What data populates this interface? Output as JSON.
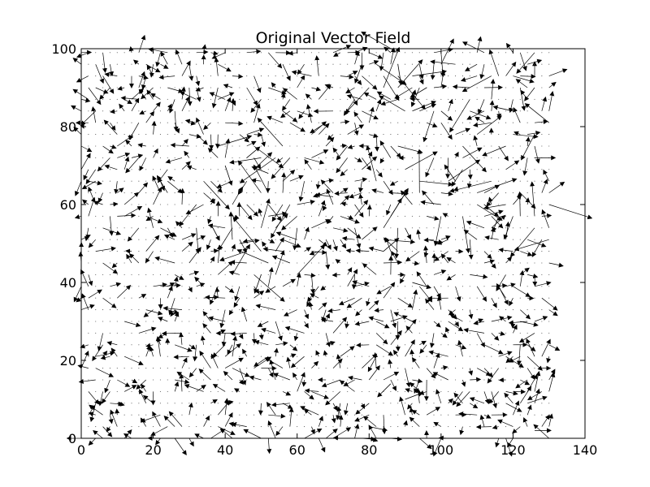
{
  "chart_data": {
    "type": "quiver",
    "title": "Original Vector Field",
    "xlabel": "",
    "ylabel": "",
    "xlim": [
      0,
      140
    ],
    "ylim": [
      0,
      100
    ],
    "xticks": [
      0,
      20,
      40,
      60,
      80,
      100,
      120,
      140
    ],
    "yticks": [
      0,
      20,
      40,
      60,
      80,
      100
    ],
    "grid": false,
    "legend": "none",
    "background_color": "#ffffff",
    "arrow_color": "#000000",
    "sample_grid": {
      "x_start": 0,
      "x_end": 130,
      "x_step": 2,
      "y_start": 0,
      "y_end": 100,
      "y_step": 3
    },
    "field_description": "Dense quiver plot of small arrows with mostly random directions; larger arrows cluster around x 30-60, y 40-75 and x 80-130, y 50-100.",
    "vectors_sample": [
      {
        "x": 40,
        "y": 70,
        "u": 0.6,
        "v": -1.8
      },
      {
        "x": 46,
        "y": 72,
        "u": 1.2,
        "v": 1.0
      },
      {
        "x": 52,
        "y": 68,
        "u": -1.5,
        "v": 0.6
      },
      {
        "x": 36,
        "y": 55,
        "u": 0.8,
        "v": -1.5
      },
      {
        "x": 44,
        "y": 50,
        "u": 1.8,
        "v": 0.3
      },
      {
        "x": 50,
        "y": 42,
        "u": -0.6,
        "v": -1.7
      },
      {
        "x": 70,
        "y": 62,
        "u": -1.6,
        "v": 0.2
      },
      {
        "x": 84,
        "y": 48,
        "u": 1.4,
        "v": 1.2
      },
      {
        "x": 92,
        "y": 40,
        "u": 1.7,
        "v": -0.5
      },
      {
        "x": 104,
        "y": 66,
        "u": -1.0,
        "v": 1.5
      },
      {
        "x": 112,
        "y": 60,
        "u": 1.3,
        "v": -1.1
      },
      {
        "x": 120,
        "y": 84,
        "u": -1.8,
        "v": 0.4
      },
      {
        "x": 126,
        "y": 72,
        "u": 1.9,
        "v": 0.0
      },
      {
        "x": 88,
        "y": 96,
        "u": 0.3,
        "v": -1.9
      },
      {
        "x": 96,
        "y": 90,
        "u": -1.5,
        "v": -0.9
      },
      {
        "x": 86,
        "y": 14,
        "u": -1.2,
        "v": -1.2
      },
      {
        "x": 90,
        "y": 10,
        "u": 1.6,
        "v": 0.6
      },
      {
        "x": 126,
        "y": 2,
        "u": 1.5,
        "v": 0.0
      }
    ]
  }
}
